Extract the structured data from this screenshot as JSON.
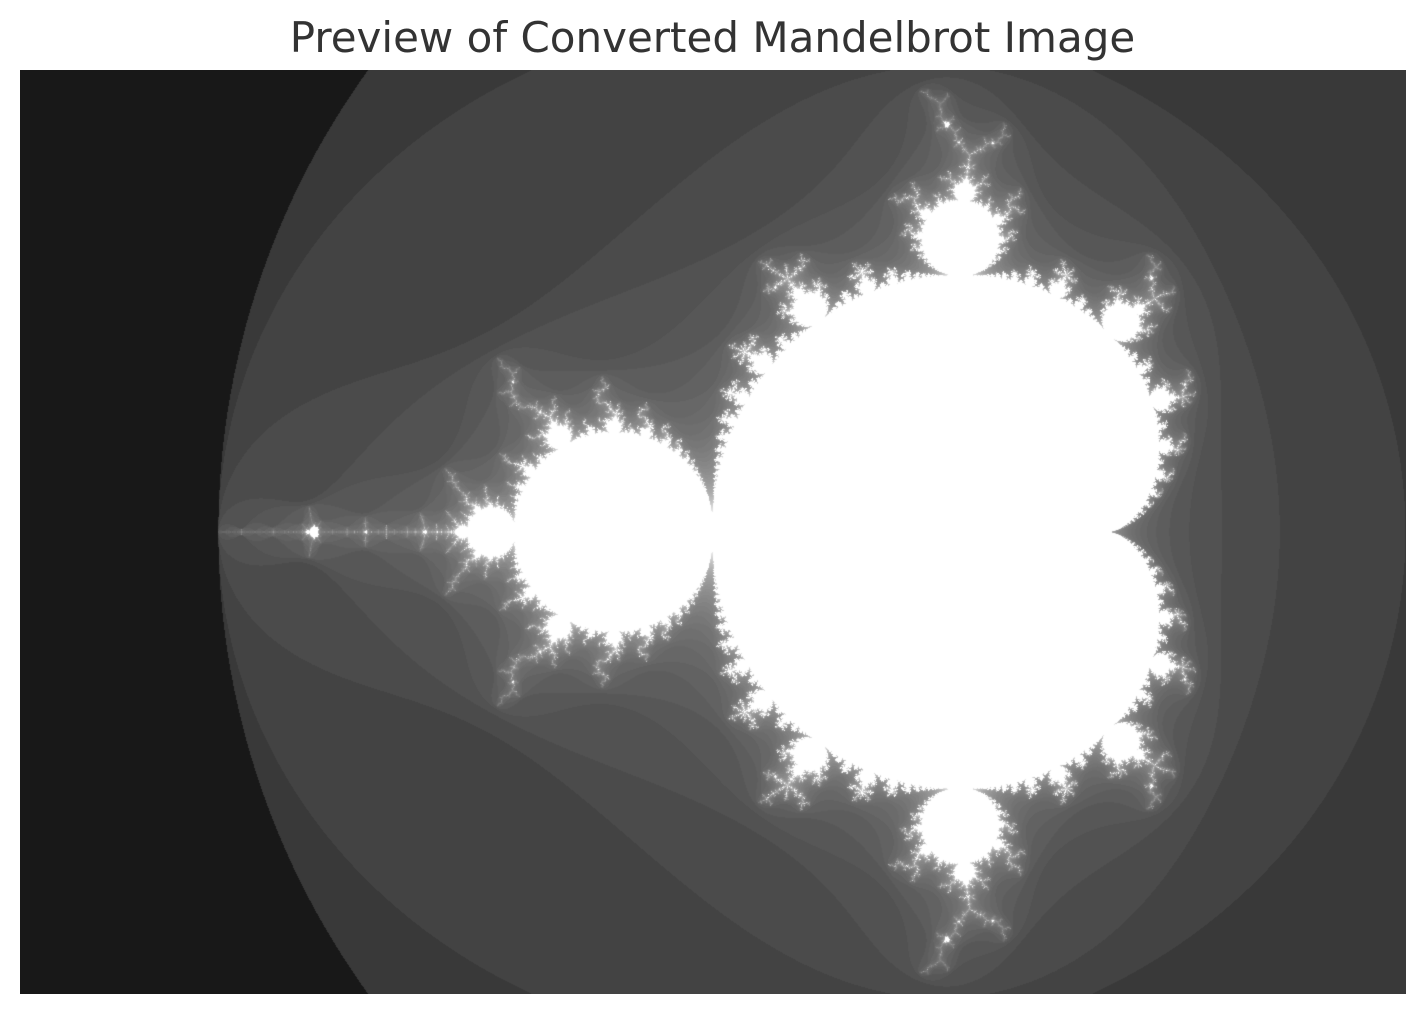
{
  "header": {
    "title": "Preview of Converted Mandelbrot Image"
  },
  "preview": {
    "icon": "mandelbrot-fractal-image",
    "colormap": "grayscale",
    "set_color": "#ffffff",
    "background_color": "#000000",
    "complex_plane": {
      "real_range": [
        -2.5,
        1.0
      ],
      "imag_range": [
        -1.17,
        1.17
      ]
    },
    "max_iterations": 60
  }
}
